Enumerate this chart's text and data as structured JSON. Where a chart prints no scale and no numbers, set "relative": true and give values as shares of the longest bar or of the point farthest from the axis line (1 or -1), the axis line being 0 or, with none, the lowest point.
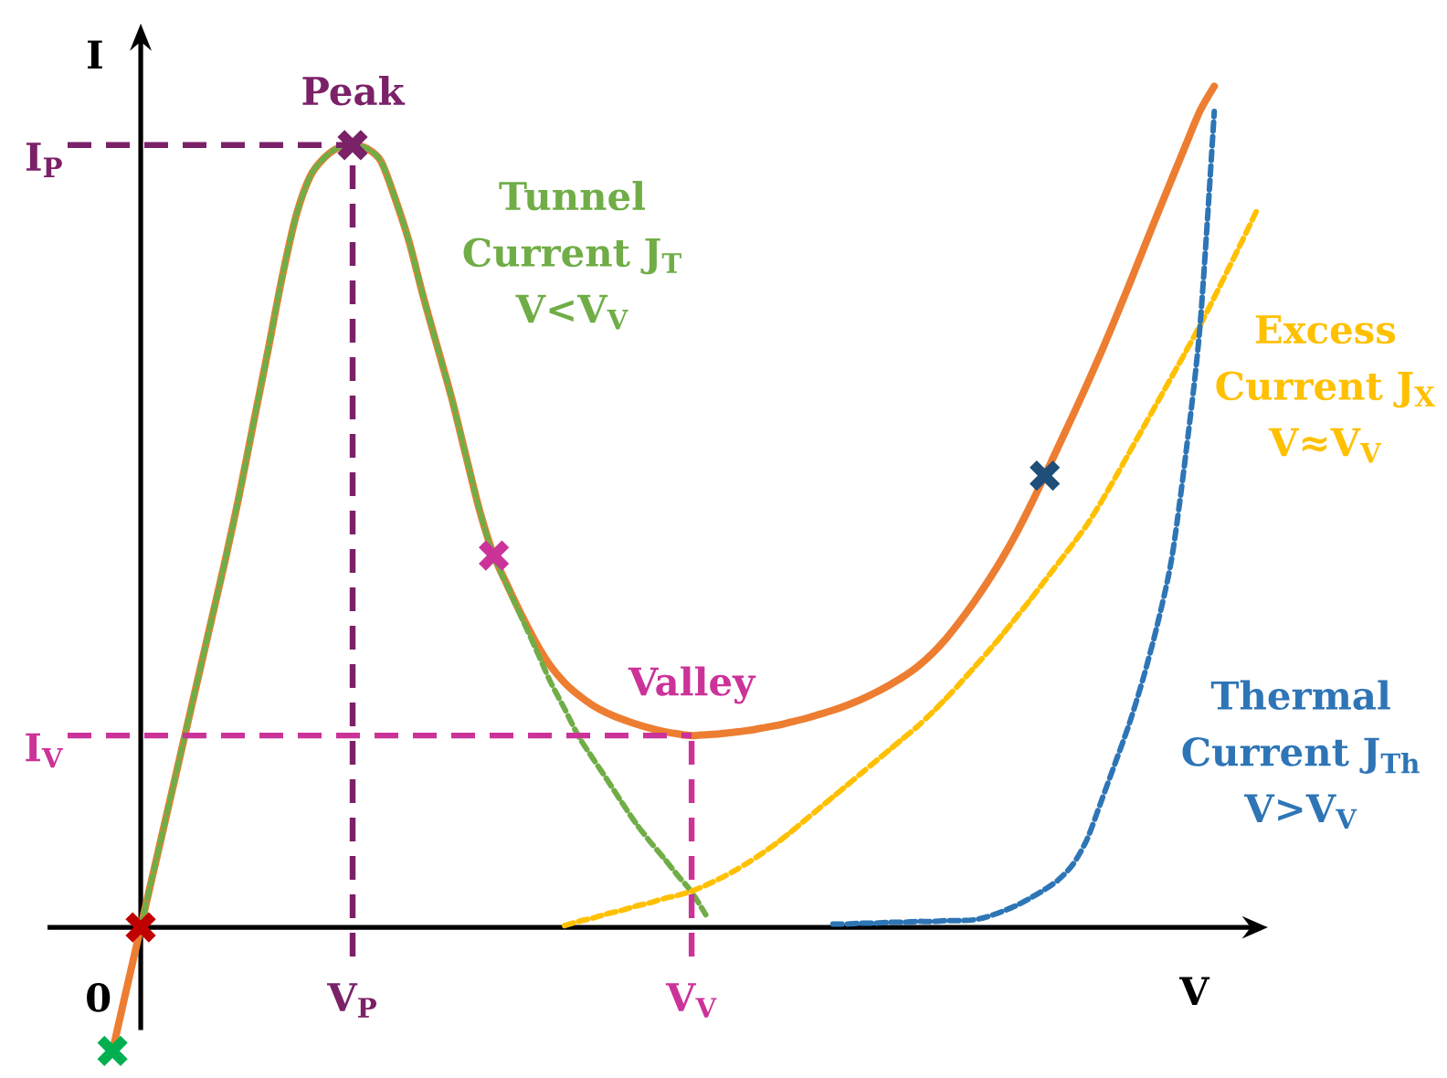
{
  "chart_data": {
    "type": "line",
    "relative": true,
    "xlabel": "V",
    "ylabel": "I",
    "categories": [
      "0",
      null,
      null,
      null,
      null,
      null,
      null,
      null,
      null,
      null,
      null,
      null,
      null,
      null,
      null,
      null,
      null,
      null,
      "V$_{P}$",
      null,
      null,
      null,
      null,
      null,
      null,
      null,
      null,
      null,
      null,
      null,
      null,
      null,
      null,
      null,
      null,
      null,
      null,
      null,
      null,
      null,
      null,
      null,
      "V$_{V}$",
      null,
      null,
      null,
      null,
      null,
      null,
      null,
      null,
      null,
      null,
      null,
      null,
      null,
      null,
      null,
      null,
      null,
      null,
      null,
      null,
      null,
      null,
      null,
      null,
      null,
      null,
      null,
      null,
      null,
      null,
      null,
      null,
      null,
      null,
      null,
      null,
      null,
      null,
      null,
      null
    ],
    "series": [
      {
        "color": "#ed7d31",
        "line_style": "solid",
        "values": [
          null,
          -0.147,
          -0.073,
          0,
          0.073,
          0.146,
          0.219,
          0.292,
          0.365,
          0.438,
          0.516,
          0.601,
          0.685,
          0.772,
          0.846,
          0.893,
          0.915,
          0.927,
          0.93,
          0.926,
          0.911,
          0.867,
          0.815,
          0.75,
          0.69,
          0.63,
          0.562,
          0.495,
          0.442,
          0.405,
          0.37,
          0.338,
          0.311,
          0.291,
          0.276,
          0.264,
          0.255,
          0.248,
          0.242,
          0.237,
          0.233,
          0.23,
          0.228,
          0.229,
          0.23,
          0.232,
          0.234,
          0.237,
          0.24,
          0.244,
          0.248,
          0.253,
          0.258,
          0.264,
          0.271,
          0.279,
          0.288,
          0.298,
          0.31,
          0.325,
          0.343,
          0.364,
          0.387,
          0.412,
          0.439,
          0.469,
          0.502,
          0.537,
          0.573,
          0.609,
          0.646,
          0.684,
          0.724,
          0.765,
          0.807,
          0.849,
          0.89,
          0.931,
          0.971,
          1.0,
          null,
          null,
          null
        ]
      },
      {
        "name": "Tunnel Current J$_{T}$ V<V$_{V}$",
        "color": "#70ad47",
        "line_style": "dashed",
        "values": [
          null,
          null,
          null,
          0,
          0.073,
          0.146,
          0.219,
          0.292,
          0.365,
          0.438,
          0.516,
          0.601,
          0.685,
          0.772,
          0.846,
          0.893,
          0.915,
          0.927,
          0.93,
          0.926,
          0.911,
          0.867,
          0.815,
          0.75,
          0.69,
          0.63,
          0.562,
          0.495,
          0.441,
          0.404,
          0.367,
          0.33,
          0.292,
          0.26,
          0.227,
          0.201,
          0.176,
          0.15,
          0.125,
          0.103,
          0.083,
          0.062,
          0.042,
          0.015,
          null,
          null,
          null,
          null,
          null,
          null,
          null,
          null,
          null,
          null,
          null,
          null,
          null,
          null,
          null,
          null,
          null,
          null,
          null,
          null,
          null,
          null,
          null,
          null,
          null,
          null,
          null,
          null,
          null,
          null,
          null,
          null,
          null,
          null,
          null,
          null,
          null,
          null,
          null
        ]
      },
      {
        "name": "Excess Current J$_{X}$ V≈V$_{V}$",
        "color": "#ffc000",
        "line_style": "dashed",
        "values": [
          null,
          null,
          null,
          null,
          null,
          null,
          null,
          null,
          null,
          null,
          null,
          null,
          null,
          null,
          null,
          null,
          null,
          null,
          null,
          null,
          null,
          null,
          null,
          null,
          null,
          null,
          null,
          null,
          null,
          null,
          null,
          null,
          null,
          0.002,
          0.007,
          0.011,
          0.016,
          0.02,
          0.025,
          0.029,
          0.034,
          0.038,
          0.043,
          0.05,
          0.058,
          0.067,
          0.077,
          0.088,
          0.1,
          0.113,
          0.127,
          0.141,
          0.155,
          0.169,
          0.183,
          0.197,
          0.211,
          0.225,
          0.239,
          0.255,
          0.272,
          0.29,
          0.309,
          0.328,
          0.348,
          0.369,
          0.39,
          0.412,
          0.434,
          0.456,
          0.479,
          0.506,
          0.535,
          0.565,
          0.595,
          0.625,
          0.655,
          0.685,
          0.716,
          0.749,
          0.783,
          0.817,
          0.852
        ]
      },
      {
        "name": "Thermal Current J$_{Th}$ V>V$_{V}$",
        "color": "#2e75b6",
        "line_style": "dashed",
        "values": [
          null,
          null,
          null,
          null,
          null,
          null,
          null,
          null,
          null,
          null,
          null,
          null,
          null,
          null,
          null,
          null,
          null,
          null,
          null,
          null,
          null,
          null,
          null,
          null,
          null,
          null,
          null,
          null,
          null,
          null,
          null,
          null,
          null,
          null,
          null,
          null,
          null,
          null,
          null,
          null,
          null,
          null,
          null,
          null,
          null,
          null,
          null,
          null,
          null,
          null,
          null,
          null,
          0.004,
          0.004,
          0.005,
          0.005,
          0.006,
          0.006,
          0.007,
          0.007,
          0.008,
          0.008,
          0.009,
          0.013,
          0.019,
          0.026,
          0.035,
          0.045,
          0.057,
          0.075,
          0.105,
          0.15,
          0.196,
          0.243,
          0.298,
          0.362,
          0.44,
          0.565,
          0.717,
          0.97,
          null,
          null,
          null
        ]
      },
      {
        "type": "scatter",
        "marker": "cross",
        "values": [
          null,
          -0.147,
          null,
          0,
          null,
          null,
          null,
          null,
          null,
          null,
          null,
          null,
          null,
          null,
          null,
          null,
          null,
          null,
          0.93,
          null,
          null,
          null,
          null,
          null,
          null,
          null,
          null,
          null,
          0.442,
          null,
          null,
          null,
          null,
          null,
          null,
          null,
          null,
          null,
          null,
          null,
          null,
          null,
          null,
          null,
          null,
          null,
          null,
          null,
          null,
          null,
          null,
          null,
          null,
          null,
          null,
          null,
          null,
          null,
          null,
          null,
          null,
          null,
          null,
          null,
          null,
          null,
          null,
          0.537,
          null,
          null,
          null,
          null,
          null,
          null,
          null,
          null,
          null,
          null,
          null,
          null,
          null,
          null,
          null
        ],
        "colors": [
          null,
          "#00b050",
          null,
          "#c00000",
          null,
          null,
          null,
          null,
          null,
          null,
          null,
          null,
          null,
          null,
          null,
          null,
          null,
          null,
          "#7b2168",
          null,
          null,
          null,
          null,
          null,
          null,
          null,
          null,
          null,
          "#cc3399",
          null,
          null,
          null,
          null,
          null,
          null,
          null,
          null,
          null,
          null,
          null,
          null,
          null,
          null,
          null,
          null,
          null,
          null,
          null,
          null,
          null,
          null,
          null,
          null,
          null,
          null,
          null,
          null,
          null,
          null,
          null,
          null,
          null,
          null,
          null,
          null,
          null,
          null,
          "#1f4e79",
          null,
          null,
          null,
          null,
          null,
          null,
          null,
          null,
          null,
          null,
          null,
          null,
          null,
          null,
          null
        ]
      }
    ],
    "ref_lines": [
      {
        "axis": "y",
        "value": 0.93,
        "label": "I$_{P}$",
        "color": "#7b2168",
        "line_style": "dashed"
      },
      {
        "axis": "y",
        "value": 0.228,
        "label": "I$_{V}$",
        "color": "#cc3399",
        "line_style": "dashed"
      },
      {
        "axis": "x",
        "value": "V$_{P}$",
        "color": "#7b2168",
        "line_style": "dashed"
      },
      {
        "axis": "x",
        "value": "V$_{V}$",
        "color": "#cc3399",
        "line_style": "dashed"
      }
    ],
    "annotations": [
      {
        "text": "Peak",
        "x": "V$_{P}$",
        "y": 0.93
      },
      {
        "text": "Valley",
        "x": "V$_{V}$",
        "y": 0.228
      }
    ]
  }
}
